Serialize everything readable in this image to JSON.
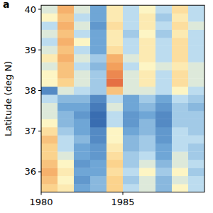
{
  "chart_data": {
    "type": "heatmap",
    "panel_label": "a",
    "y_label": "Latitude (deg N)",
    "x": [
      1980,
      1981,
      1982,
      1983,
      1984,
      1985,
      1986,
      1987,
      1988,
      1989
    ],
    "y": [
      35.6,
      35.8,
      36.0,
      36.2,
      36.4,
      36.6,
      36.8,
      37.0,
      37.2,
      37.4,
      37.6,
      37.8,
      38.0,
      38.2,
      38.4,
      38.6,
      38.8,
      39.0,
      39.2,
      39.4,
      39.6,
      39.8,
      40.0
    ],
    "cells": [
      [
        0.3,
        0.1,
        -0.5,
        -0.4,
        0.3,
        -0.2,
        -0.1,
        -0.4,
        0.0,
        -0.2
      ],
      [
        0.4,
        0.0,
        -0.6,
        -0.4,
        0.3,
        -0.3,
        -0.1,
        -0.4,
        -0.1,
        -0.2
      ],
      [
        0.5,
        0.1,
        -0.5,
        -0.5,
        0.2,
        -0.2,
        0.0,
        -0.3,
        0.0,
        -0.3
      ],
      [
        0.4,
        0.0,
        -0.6,
        -0.5,
        0.3,
        -0.3,
        -0.1,
        -0.4,
        -0.1,
        -0.2
      ],
      [
        0.3,
        -0.1,
        -0.5,
        -0.6,
        0.2,
        -0.3,
        -0.2,
        -0.5,
        -0.1,
        -0.3
      ],
      [
        0.3,
        -0.2,
        -0.5,
        -0.6,
        0.1,
        -0.4,
        -0.3,
        -0.5,
        -0.2,
        -0.3
      ],
      [
        0.4,
        -0.2,
        -0.4,
        -0.7,
        0.0,
        -0.4,
        -0.3,
        -0.6,
        -0.2,
        -0.2
      ],
      [
        0.2,
        -0.3,
        -0.5,
        -0.7,
        0.0,
        -0.5,
        -0.4,
        -0.6,
        -0.2,
        -0.3
      ],
      [
        0.0,
        -0.4,
        -0.5,
        -0.9,
        -0.2,
        -0.6,
        -0.4,
        -0.7,
        -0.3,
        -0.3
      ],
      [
        -0.1,
        -0.4,
        -0.6,
        -0.9,
        -0.2,
        -0.6,
        -0.5,
        -0.7,
        -0.3,
        -0.3
      ],
      [
        -0.1,
        -0.5,
        -0.5,
        -0.8,
        -0.1,
        -0.5,
        -0.4,
        -0.6,
        -0.3,
        -0.4
      ],
      [
        -0.2,
        -0.4,
        -0.4,
        -0.7,
        -0.2,
        -0.5,
        -0.3,
        -0.5,
        -0.2,
        -0.3
      ],
      [
        -0.7,
        -0.1,
        -0.2,
        -0.3,
        0.4,
        -0.1,
        -0.1,
        -0.2,
        0.0,
        -0.2
      ],
      [
        0.0,
        0.3,
        -0.1,
        -0.3,
        0.8,
        -0.1,
        0.1,
        -0.2,
        0.2,
        -0.1
      ],
      [
        0.0,
        0.4,
        -0.1,
        -0.3,
        0.7,
        -0.1,
        0.1,
        -0.2,
        0.2,
        -0.1
      ],
      [
        -0.1,
        0.4,
        -0.2,
        -0.4,
        0.6,
        -0.2,
        0.0,
        -0.1,
        0.1,
        -0.1
      ],
      [
        0.1,
        0.5,
        -0.1,
        -0.3,
        0.5,
        -0.1,
        0.1,
        -0.2,
        0.2,
        -0.2
      ],
      [
        -0.1,
        0.4,
        -0.2,
        -0.5,
        0.2,
        -0.2,
        0.1,
        -0.2,
        0.2,
        -0.2
      ],
      [
        -0.2,
        0.5,
        0.0,
        -0.5,
        0.1,
        -0.2,
        0.1,
        -0.2,
        0.2,
        -0.2
      ],
      [
        -0.1,
        0.4,
        -0.2,
        -0.5,
        0.1,
        -0.3,
        0.0,
        -0.3,
        0.1,
        -0.2
      ],
      [
        -0.2,
        0.5,
        -0.1,
        -0.6,
        0.2,
        -0.2,
        0.1,
        -0.2,
        0.2,
        -0.1
      ],
      [
        0.0,
        0.4,
        -0.2,
        -0.5,
        0.1,
        -0.2,
        0.1,
        -0.3,
        0.1,
        -0.2
      ],
      [
        -0.1,
        0.5,
        -0.1,
        -0.5,
        0.1,
        -0.2,
        0.0,
        -0.2,
        0.2,
        -0.2
      ]
    ],
    "zlim": [
      -1,
      1
    ],
    "xlim": [
      1980,
      1990
    ],
    "ylim": [
      35.5,
      40.1
    ],
    "xticks": [
      1980,
      1985
    ],
    "yticks": [
      36,
      37,
      38,
      39,
      40
    ]
  }
}
